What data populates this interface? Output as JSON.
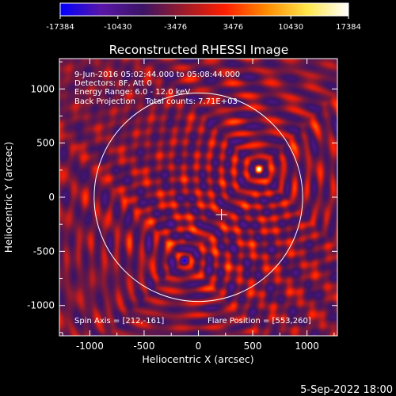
{
  "colorbar": {
    "ticks": [
      "-17384",
      "-10430",
      "-3476",
      "3476",
      "10430",
      "17384"
    ],
    "stops": [
      "#0000ff",
      "#5a16a8",
      "#3b1466",
      "#9b1b2a",
      "#ff1e00",
      "#ff8a00",
      "#ffe64a",
      "#ffffff"
    ]
  },
  "chart_data": {
    "type": "heatmap",
    "title": "Reconstructed RHESSI Image",
    "xlabel": "Heliocentric X (arcsec)",
    "ylabel": "Heliocentric Y (arcsec)",
    "xlim": [
      -1280,
      1280
    ],
    "ylim": [
      -1280,
      1280
    ],
    "x_ticks": [
      -1000,
      -500,
      0,
      500,
      1000
    ],
    "y_ticks": [
      -1000,
      -500,
      0,
      500,
      1000
    ],
    "x_tick_labels": [
      "-1000",
      "-500",
      "0",
      "500",
      "1000"
    ],
    "y_tick_labels": [
      "-1000",
      "-500",
      "0",
      "500",
      "1000"
    ],
    "value_range": [
      -17384,
      17384
    ],
    "info_lines": [
      "9-Jun-2016 05:02:44.000 to 05:08:44.000",
      "Detectors: 8F, Att 0",
      "Energy Range: 6.0 - 12.0 keV",
      "Back Projection    Total counts: 7.71E+03"
    ],
    "spin_axis_label": "Spin Axis = [212,-161]",
    "flare_position_label": "Flare Position = [553,260]",
    "spin_axis": [
      212,
      -161
    ],
    "flare_position": [
      553,
      260
    ],
    "antipodal_source": [
      -130,
      -580
    ],
    "solar_limb_radius": 960,
    "footer": "5-Sep-2022 18:00"
  }
}
